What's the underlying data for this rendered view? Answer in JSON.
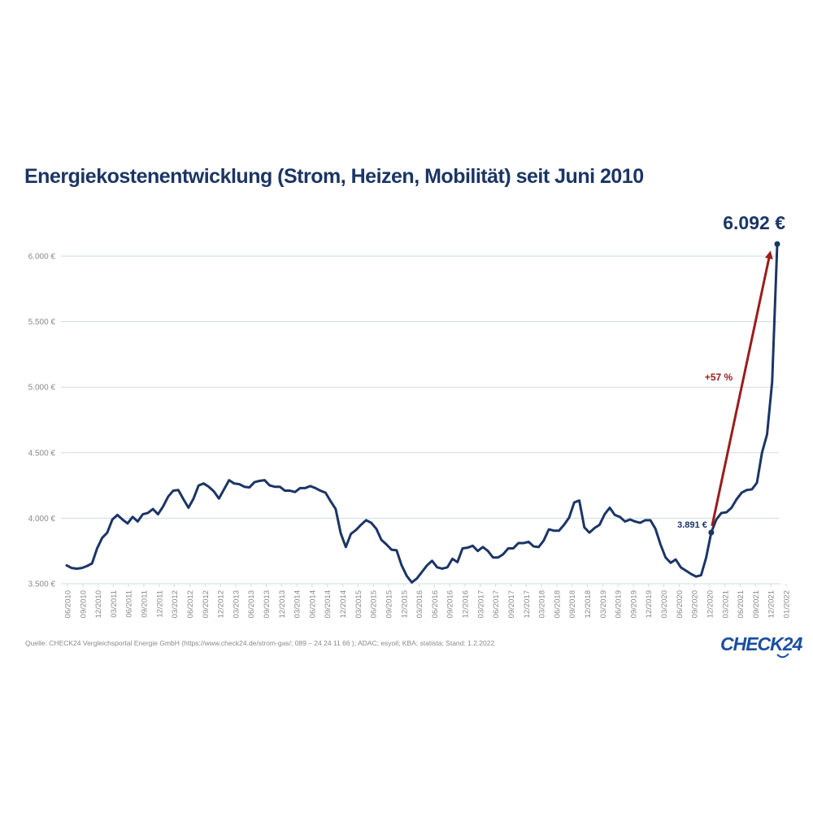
{
  "chart_data": {
    "type": "line",
    "title": "Energiekostenentwicklung (Strom, Heizen, Mobilität) seit Juni 2010",
    "ylim": [
      3500,
      6000
    ],
    "y_ticks": [
      3500,
      4000,
      4500,
      5000,
      5500,
      6000
    ],
    "y_tick_labels": [
      "3.500 €",
      "4.000 €",
      "4.500 €",
      "5.000 €",
      "5.500 €",
      "6.000 €"
    ],
    "x_tick_labels": [
      "06/2010",
      "09/2010",
      "12/2010",
      "03/2011",
      "06/2011",
      "09/2011",
      "12/2011",
      "03/2012",
      "06/2012",
      "09/2012",
      "12/2012",
      "03/2013",
      "06/2013",
      "09/2013",
      "12/2013",
      "03/2014",
      "06/2014",
      "09/2014",
      "12/2014",
      "03/2015",
      "06/2015",
      "09/2015",
      "12/2015",
      "03/2016",
      "06/2016",
      "09/2016",
      "12/2016",
      "03/2017",
      "06/2017",
      "09/2017",
      "12/2017",
      "03/2018",
      "06/2018",
      "09/2018",
      "12/2018",
      "03/2019",
      "06/2019",
      "09/2019",
      "12/2019",
      "03/2020",
      "06/2020",
      "09/2020",
      "12/2020",
      "03/2021",
      "06/2021",
      "09/2021",
      "12/2021",
      "01/2022"
    ],
    "grid": "horizontal",
    "series": [
      {
        "color": "#1b3565",
        "values": [
          3640,
          3620,
          3615,
          3620,
          3635,
          3655,
          3770,
          3850,
          3890,
          3990,
          4025,
          3990,
          3960,
          4010,
          3975,
          4030,
          4040,
          4070,
          4030,
          4090,
          4165,
          4210,
          4215,
          4145,
          4080,
          4150,
          4250,
          4265,
          4240,
          4205,
          4150,
          4220,
          4290,
          4265,
          4260,
          4240,
          4235,
          4275,
          4285,
          4290,
          4250,
          4240,
          4240,
          4210,
          4210,
          4200,
          4230,
          4230,
          4245,
          4230,
          4210,
          4195,
          4130,
          4070,
          3885,
          3780,
          3880,
          3910,
          3950,
          3985,
          3965,
          3920,
          3835,
          3800,
          3760,
          3755,
          3640,
          3560,
          3510,
          3540,
          3590,
          3640,
          3675,
          3625,
          3615,
          3625,
          3690,
          3665,
          3770,
          3775,
          3790,
          3750,
          3780,
          3750,
          3700,
          3700,
          3725,
          3770,
          3770,
          3810,
          3810,
          3820,
          3785,
          3780,
          3830,
          3915,
          3905,
          3905,
          3950,
          4005,
          4120,
          4135,
          3930,
          3890,
          3925,
          3950,
          4030,
          4080,
          4025,
          4010,
          3975,
          3990,
          3975,
          3965,
          3985,
          3985,
          3920,
          3800,
          3700,
          3660,
          3685,
          3625,
          3600,
          3575,
          3555,
          3565,
          3700,
          3891,
          3990,
          4040,
          4045,
          4080,
          4145,
          4195,
          4215,
          4220,
          4270,
          4500,
          4640,
          5040,
          6092
        ]
      }
    ],
    "annotations": {
      "start_value_label": "3.891 €",
      "end_value_label": "6.092 €",
      "change_label": "+57 %",
      "arrow_color": "#9b1c1c"
    }
  },
  "source_note": "Quelle: CHECK24 Vergleichsportal Energie GmbH (https://www.check24.de/strom-gas/; 089 – 24 24 11 66 ); ADAC; esyoil; KBA; statista; Stand: 1.2.2022",
  "logo_text": "CHECK24",
  "colors": {
    "line": "#1b3565",
    "title": "#1b3565",
    "arrow": "#9b1c1c",
    "grid": "#cfdde3",
    "axis_labels": "#8a8a8a",
    "logo": "#1a4fa0"
  }
}
